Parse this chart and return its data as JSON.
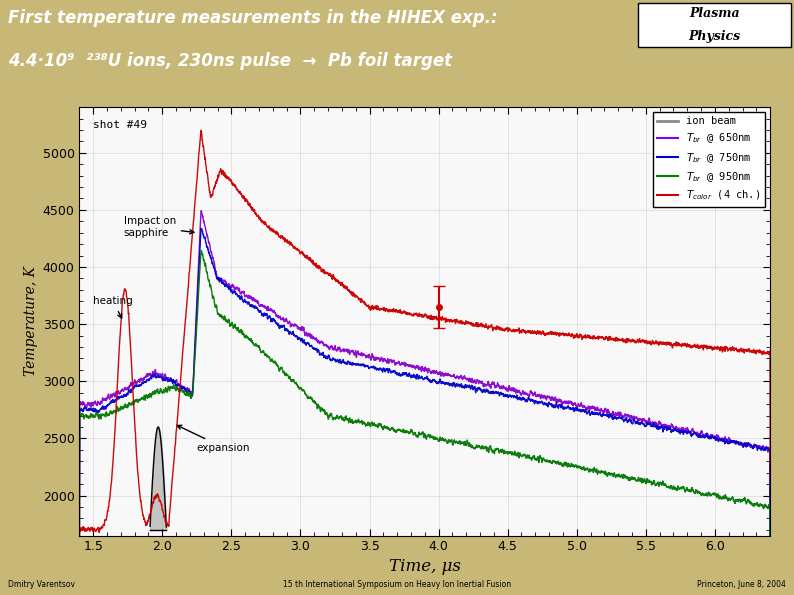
{
  "title_line1": "First temperature measurements in the HIHEX exp.:",
  "title_line2": "4.4·10⁹  ²³⁸U ions, 230ns pulse  →  Pb foil target",
  "xlabel": "Time, μs",
  "ylabel": "Temperature, K",
  "header_bg": "#c8b878",
  "plot_bg": "#f8f8f8",
  "outer_bg": "#c8b878",
  "footer_left": "Dmitry Varentsov",
  "footer_center": "15 th International Symposium on Heavy Ion Inertial Fusion",
  "footer_right": "Princeton, June 8, 2004",
  "annotation_shot": "shot #49",
  "annotation_impact": "Impact on\nsapphire",
  "annotation_heating": "heating",
  "annotation_expansion": "expansion",
  "legend_entries": [
    {
      "label": "ion beam",
      "color": "#888888"
    },
    {
      "label": "$T_{br}$ @ 650nm",
      "color": "#7f00ff"
    },
    {
      "label": "$T_{br}$ @ 750nm",
      "color": "#0000cc"
    },
    {
      "label": "$T_{br}$ @ 950nm",
      "color": "#008000"
    },
    {
      "label": "$T_{color}$ (4 ch.)",
      "color": "#cc0000"
    }
  ],
  "xlim": [
    1.4,
    6.4
  ],
  "ylim": [
    1650,
    5400
  ],
  "yticks": [
    2000,
    2500,
    3000,
    3500,
    4000,
    4500,
    5000
  ],
  "xticks": [
    1.5,
    2.0,
    2.5,
    3.0,
    3.5,
    4.0,
    4.5,
    5.0,
    5.5,
    6.0
  ],
  "errorbar_x": 4.0,
  "errorbar_y": 3650,
  "errorbar_yerr": 180,
  "errorbar_color": "#cc0000"
}
